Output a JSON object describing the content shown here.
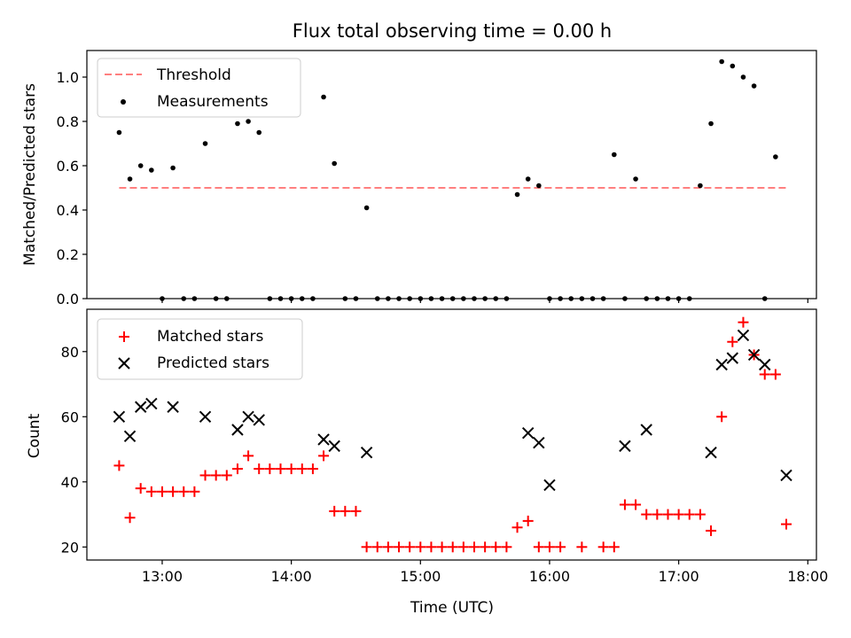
{
  "chart_data": [
    {
      "type": "scatter",
      "title": "Flux total observing time = 0.00 h",
      "xlabel": "",
      "ylabel": "Matched/Predicted stars",
      "xlim": [
        "12:25",
        "18:04"
      ],
      "ylim": [
        0,
        1.12
      ],
      "yticks": [
        "0.0",
        "0.2",
        "0.4",
        "0.6",
        "0.8",
        "1.0"
      ],
      "grid": false,
      "legend_position": "top-left",
      "threshold": {
        "name": "Threshold",
        "color": "#ff7f7f",
        "value": 0.5,
        "x_range": [
          "12:40",
          "17:50"
        ]
      },
      "series": [
        {
          "name": "Measurements",
          "marker": "dot",
          "color": "#000000",
          "x": [
            "12:40",
            "12:45",
            "12:50",
            "12:55",
            "13:00",
            "13:05",
            "13:10",
            "13:15",
            "13:20",
            "13:25",
            "13:30",
            "13:35",
            "13:40",
            "13:45",
            "13:50",
            "13:55",
            "14:00",
            "14:05",
            "14:10",
            "14:15",
            "14:20",
            "14:25",
            "14:30",
            "14:35",
            "14:40",
            "14:45",
            "14:50",
            "14:55",
            "15:00",
            "15:05",
            "15:10",
            "15:15",
            "15:20",
            "15:25",
            "15:30",
            "15:35",
            "15:40",
            "15:45",
            "15:50",
            "15:55",
            "16:00",
            "16:05",
            "16:10",
            "16:15",
            "16:20",
            "16:25",
            "16:30",
            "16:35",
            "16:40",
            "16:45",
            "16:50",
            "16:55",
            "17:00",
            "17:05",
            "17:10",
            "17:15",
            "17:20",
            "17:25",
            "17:30",
            "17:35",
            "17:40",
            "17:45",
            "17:50"
          ],
          "y": [
            0.75,
            0.54,
            0.6,
            0.58,
            0,
            0.59,
            0,
            0,
            0.7,
            0,
            0,
            0.79,
            0.8,
            0.75,
            0,
            0,
            0,
            0,
            0,
            0.91,
            0.61,
            0,
            0,
            0.41,
            0,
            0,
            0,
            0,
            0,
            0,
            0,
            0,
            0,
            0,
            0,
            0,
            0,
            0.47,
            0.54,
            0.51,
            0,
            0,
            0,
            0,
            0,
            0,
            0.65,
            0,
            0.54,
            0,
            0,
            0,
            0,
            0,
            0.51,
            0.79,
            1.07,
            1.05,
            1.0,
            0.96,
            0,
            0.64,
            null
          ]
        }
      ]
    },
    {
      "type": "scatter",
      "title": "",
      "xlabel": "Time (UTC)",
      "ylabel": "Count",
      "xlim": [
        "12:25",
        "18:04"
      ],
      "ylim": [
        16,
        93
      ],
      "xticks": [
        "13:00",
        "14:00",
        "15:00",
        "16:00",
        "17:00",
        "18:00"
      ],
      "yticks": [
        "20",
        "40",
        "60",
        "80"
      ],
      "grid": false,
      "legend_position": "top-left",
      "series": [
        {
          "name": "Matched stars",
          "marker": "plus",
          "color": "#ff0000",
          "x": [
            "12:40",
            "12:45",
            "12:50",
            "12:55",
            "13:00",
            "13:05",
            "13:10",
            "13:15",
            "13:20",
            "13:25",
            "13:30",
            "13:35",
            "13:40",
            "13:45",
            "13:50",
            "13:55",
            "14:00",
            "14:05",
            "14:10",
            "14:15",
            "14:20",
            "14:25",
            "14:30",
            "14:35",
            "14:40",
            "14:45",
            "14:50",
            "14:55",
            "15:00",
            "15:05",
            "15:10",
            "15:15",
            "15:20",
            "15:25",
            "15:30",
            "15:35",
            "15:40",
            "15:45",
            "15:50",
            "15:55",
            "16:00",
            "16:05",
            "16:15",
            "16:25",
            "16:30",
            "16:35",
            "16:40",
            "16:45",
            "16:50",
            "16:55",
            "17:00",
            "17:05",
            "17:10",
            "17:15",
            "17:20",
            "17:25",
            "17:30",
            "17:35",
            "17:40",
            "17:45",
            "17:50"
          ],
          "y": [
            45,
            29,
            38,
            37,
            37,
            37,
            37,
            37,
            42,
            42,
            42,
            44,
            48,
            44,
            44,
            44,
            44,
            44,
            44,
            48,
            31,
            31,
            31,
            20,
            20,
            20,
            20,
            20,
            20,
            20,
            20,
            20,
            20,
            20,
            20,
            20,
            20,
            26,
            28,
            20,
            20,
            20,
            20,
            20,
            20,
            33,
            33,
            30,
            30,
            30,
            30,
            30,
            30,
            25,
            60,
            83,
            89,
            79,
            73,
            73,
            27
          ]
        },
        {
          "name": "Predicted stars",
          "marker": "x",
          "color": "#000000",
          "x": [
            "12:40",
            "12:45",
            "12:50",
            "12:55",
            "13:05",
            "13:20",
            "13:35",
            "13:40",
            "13:45",
            "14:15",
            "14:20",
            "14:35",
            "15:50",
            "15:55",
            "16:00",
            "16:35",
            "16:45",
            "17:15",
            "17:20",
            "17:25",
            "17:30",
            "17:35",
            "17:40",
            "17:50"
          ],
          "y": [
            60,
            54,
            63,
            64,
            63,
            60,
            56,
            60,
            59,
            53,
            51,
            49,
            55,
            52,
            39,
            51,
            56,
            49,
            76,
            78,
            85,
            79,
            76,
            42
          ]
        }
      ]
    }
  ]
}
